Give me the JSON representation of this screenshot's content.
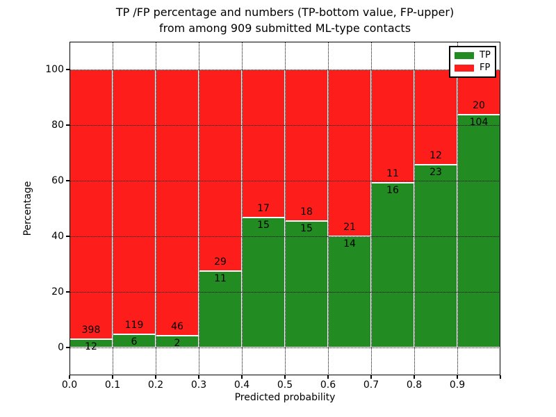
{
  "title": {
    "line1": "TP /FP percentage and numbers (TP-bottom value, FP-upper)",
    "line2": "from among 909 submitted ML-type contacts"
  },
  "chart_data": {
    "type": "bar",
    "stacked": true,
    "normalized": "each bin scaled to 100%",
    "title": "TP /FP percentage and numbers (TP-bottom value, FP-upper)\nfrom among 909 submitted ML-type contacts",
    "xlabel": "Predicted probability",
    "ylabel": "Percentage",
    "total_contacts": 909,
    "bin_edges": [
      0.0,
      0.1,
      0.2,
      0.3,
      0.4,
      0.5,
      0.6,
      0.7,
      0.8,
      0.9,
      1.0
    ],
    "categories": [
      "0.0-0.1",
      "0.1-0.2",
      "0.2-0.3",
      "0.3-0.4",
      "0.4-0.5",
      "0.5-0.6",
      "0.6-0.7",
      "0.7-0.8",
      "0.8-0.9",
      "0.9-1.0"
    ],
    "series": [
      {
        "name": "TP",
        "color": "#228b22",
        "counts": [
          12,
          6,
          2,
          11,
          15,
          15,
          14,
          16,
          23,
          104
        ]
      },
      {
        "name": "FP",
        "color": "#fd1d1b",
        "counts": [
          398,
          119,
          46,
          29,
          17,
          18,
          21,
          11,
          12,
          20
        ]
      }
    ],
    "tp_percent_of_bin": [
      2.9,
      4.8,
      4.2,
      27.5,
      46.9,
      45.5,
      40.0,
      59.3,
      65.7,
      83.9
    ],
    "bar_label_rule": "FP count printed above TP/FP boundary, TP count below it",
    "xtick_labels": [
      "0.0",
      "0.1",
      "0.2",
      "0.3",
      "0.4",
      "0.5",
      "0.6",
      "0.7",
      "0.8",
      "0.9"
    ],
    "ytick_values": [
      0,
      20,
      40,
      60,
      80,
      100
    ],
    "xlim": [
      0.0,
      1.0
    ],
    "ylim": [
      -10,
      110
    ],
    "grid": "dotted black, on top of bars",
    "bar_edge_color": "#ffffff",
    "legend": {
      "position": "upper right",
      "entries": [
        {
          "label": "TP",
          "color": "#228b22"
        },
        {
          "label": "FP",
          "color": "#fd1d1b"
        }
      ]
    }
  }
}
